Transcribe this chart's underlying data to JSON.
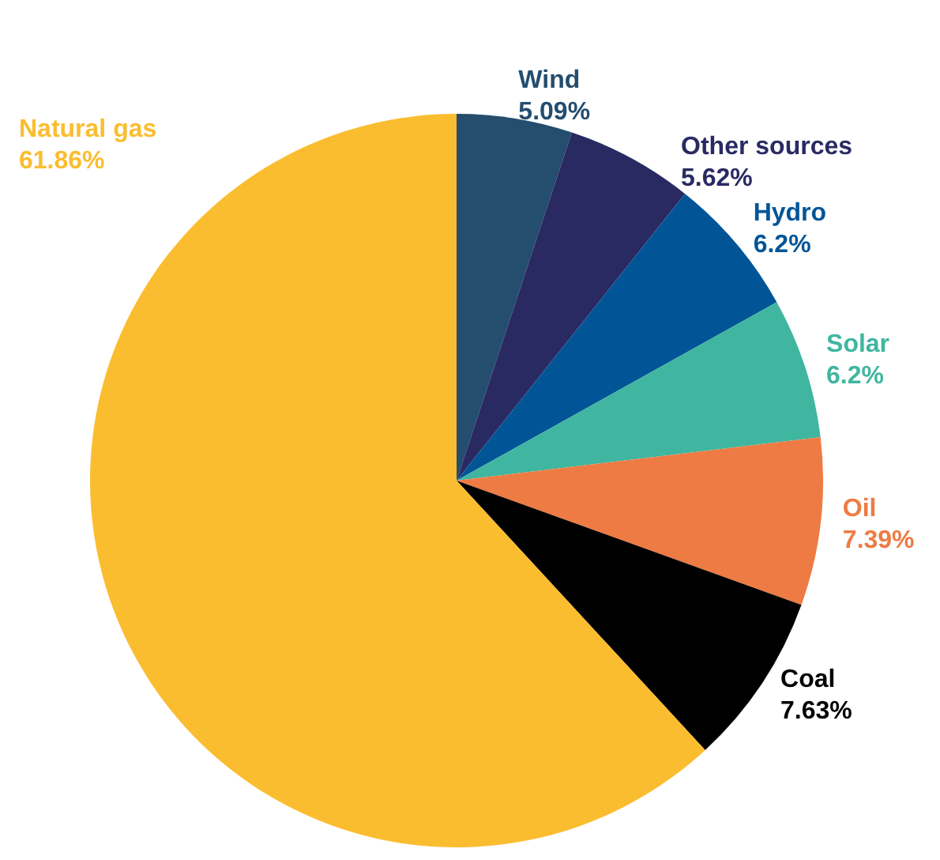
{
  "chart_data": {
    "type": "pie",
    "categories": [
      "Wind",
      "Other sources",
      "Hydro",
      "Solar",
      "Oil",
      "Coal",
      "Natural gas"
    ],
    "values": [
      5.09,
      5.62,
      6.2,
      6.2,
      7.39,
      7.63,
      61.86
    ],
    "colors": [
      "#244d6e",
      "#2a2a63",
      "#015597",
      "#40b6a0",
      "#ee7b43",
      "#000000",
      "#fbbd30"
    ],
    "value_labels": [
      "5.09%",
      "5.62%",
      "6.2%",
      "6.2%",
      "7.39%",
      "7.63%",
      "61.86%"
    ],
    "legend": false
  }
}
